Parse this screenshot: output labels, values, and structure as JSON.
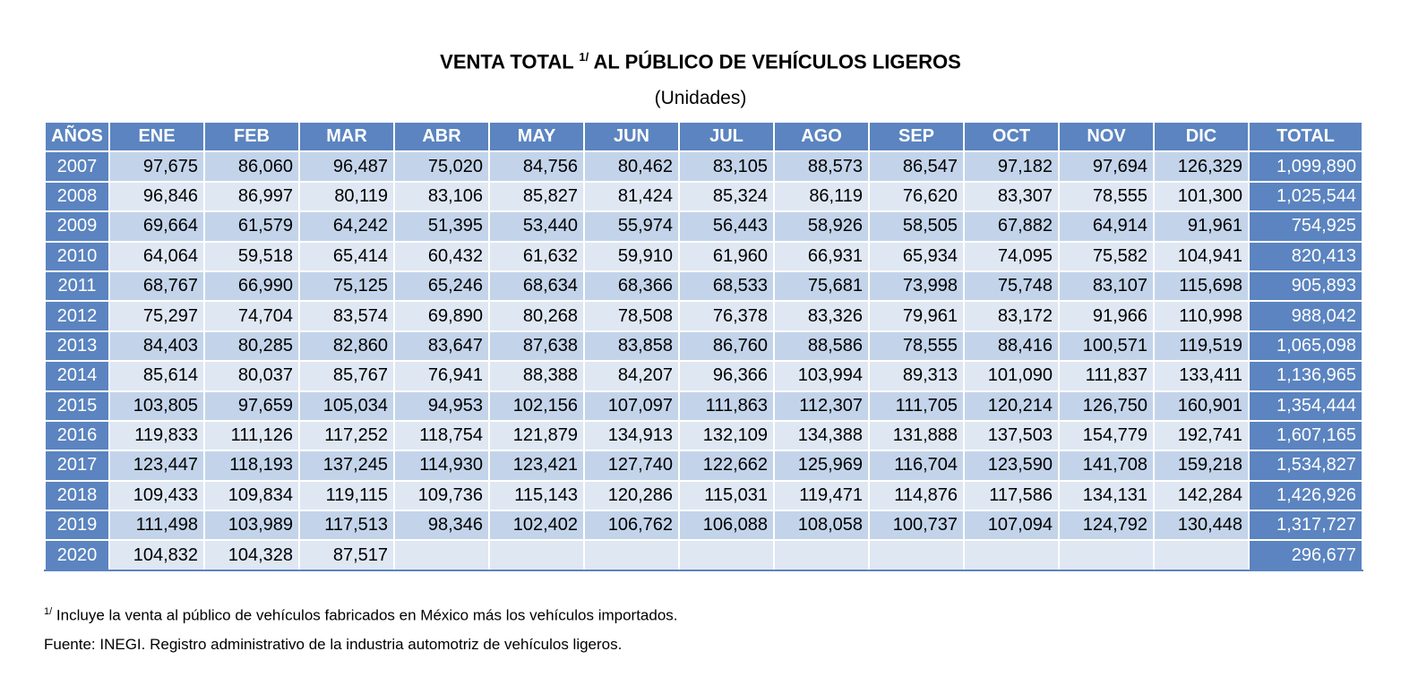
{
  "title": {
    "before": "VENTA TOTAL",
    "note": "1/",
    "after": "AL PÚBLICO DE VEHÍCULOS LIGEROS"
  },
  "subtitle": "(Unidades)",
  "table": {
    "columns": [
      "AÑOS",
      "ENE",
      "FEB",
      "MAR",
      "ABR",
      "MAY",
      "JUN",
      "JUL",
      "AGO",
      "SEP",
      "OCT",
      "NOV",
      "DIC",
      "TOTAL"
    ],
    "rows": [
      [
        "2007",
        "97,675",
        "86,060",
        "96,487",
        "75,020",
        "84,756",
        "80,462",
        "83,105",
        "88,573",
        "86,547",
        "97,182",
        "97,694",
        "126,329",
        "1,099,890"
      ],
      [
        "2008",
        "96,846",
        "86,997",
        "80,119",
        "83,106",
        "85,827",
        "81,424",
        "85,324",
        "86,119",
        "76,620",
        "83,307",
        "78,555",
        "101,300",
        "1,025,544"
      ],
      [
        "2009",
        "69,664",
        "61,579",
        "64,242",
        "51,395",
        "53,440",
        "55,974",
        "56,443",
        "58,926",
        "58,505",
        "67,882",
        "64,914",
        "91,961",
        "754,925"
      ],
      [
        "2010",
        "64,064",
        "59,518",
        "65,414",
        "60,432",
        "61,632",
        "59,910",
        "61,960",
        "66,931",
        "65,934",
        "74,095",
        "75,582",
        "104,941",
        "820,413"
      ],
      [
        "2011",
        "68,767",
        "66,990",
        "75,125",
        "65,246",
        "68,634",
        "68,366",
        "68,533",
        "75,681",
        "73,998",
        "75,748",
        "83,107",
        "115,698",
        "905,893"
      ],
      [
        "2012",
        "75,297",
        "74,704",
        "83,574",
        "69,890",
        "80,268",
        "78,508",
        "76,378",
        "83,326",
        "79,961",
        "83,172",
        "91,966",
        "110,998",
        "988,042"
      ],
      [
        "2013",
        "84,403",
        "80,285",
        "82,860",
        "83,647",
        "87,638",
        "83,858",
        "86,760",
        "88,586",
        "78,555",
        "88,416",
        "100,571",
        "119,519",
        "1,065,098"
      ],
      [
        "2014",
        "85,614",
        "80,037",
        "85,767",
        "76,941",
        "88,388",
        "84,207",
        "96,366",
        "103,994",
        "89,313",
        "101,090",
        "111,837",
        "133,411",
        "1,136,965"
      ],
      [
        "2015",
        "103,805",
        "97,659",
        "105,034",
        "94,953",
        "102,156",
        "107,097",
        "111,863",
        "112,307",
        "111,705",
        "120,214",
        "126,750",
        "160,901",
        "1,354,444"
      ],
      [
        "2016",
        "119,833",
        "111,126",
        "117,252",
        "118,754",
        "121,879",
        "134,913",
        "132,109",
        "134,388",
        "131,888",
        "137,503",
        "154,779",
        "192,741",
        "1,607,165"
      ],
      [
        "2017",
        "123,447",
        "118,193",
        "137,245",
        "114,930",
        "123,421",
        "127,740",
        "122,662",
        "125,969",
        "116,704",
        "123,590",
        "141,708",
        "159,218",
        "1,534,827"
      ],
      [
        "2018",
        "109,433",
        "109,834",
        "119,115",
        "109,736",
        "115,143",
        "120,286",
        "115,031",
        "119,471",
        "114,876",
        "117,586",
        "134,131",
        "142,284",
        "1,426,926"
      ],
      [
        "2019",
        "111,498",
        "103,989",
        "117,513",
        "98,346",
        "102,402",
        "106,762",
        "106,088",
        "108,058",
        "100,737",
        "107,094",
        "124,792",
        "130,448",
        "1,317,727"
      ],
      [
        "2020",
        "104,832",
        "104,328",
        "87,517",
        null,
        null,
        null,
        null,
        null,
        null,
        null,
        null,
        null,
        "296,677"
      ]
    ]
  },
  "footnote": {
    "marker": "1/",
    "text": "Incluye la venta al público de vehículos fabricados en México más los vehículos importados."
  },
  "source": "Fuente: INEGI. Registro administrativo de la industria automotriz de vehículos ligeros."
}
